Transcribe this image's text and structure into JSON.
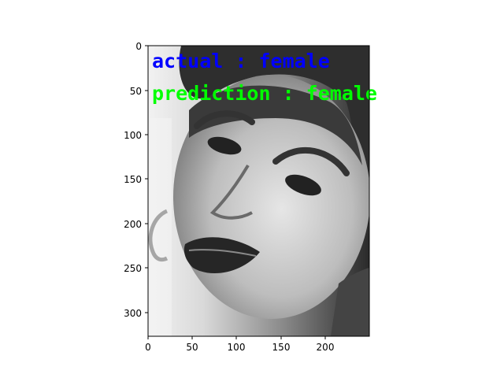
{
  "figure": {
    "image": {
      "description_icon": "grayscale-face-photo-icon",
      "overlay": {
        "actual_text": "actual : female",
        "actual_color": "#0000ff",
        "prediction_text": "prediction : female",
        "prediction_color": "#00ff00"
      }
    },
    "axes": {
      "x_ticks": [
        "0",
        "50",
        "100",
        "150",
        "200"
      ],
      "y_ticks": [
        "0",
        "50",
        "100",
        "150",
        "200",
        "250",
        "300"
      ]
    }
  }
}
